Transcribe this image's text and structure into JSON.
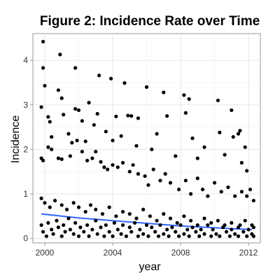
{
  "chart_data": {
    "type": "scatter",
    "title": "Figure 2: Incidence Rate over Time",
    "xlabel": "year",
    "ylabel": "Incidence",
    "xlim": [
      1999.3,
      2012.7
    ],
    "ylim": [
      -0.1,
      4.6
    ],
    "x_ticks": [
      2000,
      2004,
      2008,
      2012
    ],
    "y_ticks": [
      0,
      1,
      2,
      3,
      4
    ],
    "grid": true,
    "point_color": "#000000",
    "trend_color": "#3366ff",
    "trend_line": {
      "x": [
        1999.8,
        2001,
        2002,
        2003,
        2004,
        2005,
        2006,
        2007,
        2008,
        2009,
        2010,
        2011,
        2012.2
      ],
      "y": [
        0.55,
        0.5,
        0.46,
        0.43,
        0.4,
        0.37,
        0.34,
        0.31,
        0.28,
        0.26,
        0.24,
        0.22,
        0.2
      ]
    },
    "points": [
      [
        1999.9,
        4.42
      ],
      [
        1999.9,
        3.83
      ],
      [
        2000.0,
        3.43
      ],
      [
        1999.8,
        2.95
      ],
      [
        2000.2,
        2.73
      ],
      [
        2000.3,
        2.62
      ],
      [
        2000.4,
        2.28
      ],
      [
        2000.8,
        3.33
      ],
      [
        2000.9,
        4.13
      ],
      [
        2001.0,
        3.15
      ],
      [
        2001.1,
        2.78
      ],
      [
        2001.4,
        2.35
      ],
      [
        2001.6,
        2.15
      ],
      [
        2001.8,
        2.91
      ],
      [
        2001.8,
        3.83
      ],
      [
        2002.0,
        2.88
      ],
      [
        2002.2,
        2.64
      ],
      [
        2002.4,
        2.18
      ],
      [
        2002.6,
        3.05
      ],
      [
        2002.9,
        2.55
      ],
      [
        2003.1,
        2.8
      ],
      [
        2003.2,
        3.66
      ],
      [
        2003.6,
        2.4
      ],
      [
        2003.9,
        3.59
      ],
      [
        2004.0,
        2.2
      ],
      [
        2004.2,
        2.74
      ],
      [
        2004.5,
        2.3
      ],
      [
        2004.7,
        3.49
      ],
      [
        2004.9,
        2.76
      ],
      [
        2005.1,
        2.75
      ],
      [
        2005.4,
        2.08
      ],
      [
        2005.5,
        2.7
      ],
      [
        2006.0,
        3.4
      ],
      [
        2006.3,
        2.0
      ],
      [
        2006.6,
        2.35
      ],
      [
        2007.0,
        3.28
      ],
      [
        2007.2,
        2.75
      ],
      [
        2007.7,
        1.85
      ],
      [
        2008.2,
        3.22
      ],
      [
        2008.3,
        2.82
      ],
      [
        2008.5,
        3.13
      ],
      [
        2008.7,
        2.25
      ],
      [
        2009.0,
        1.8
      ],
      [
        2009.4,
        2.05
      ],
      [
        2010.2,
        3.1
      ],
      [
        2010.3,
        2.38
      ],
      [
        2010.6,
        1.88
      ],
      [
        2011.0,
        2.88
      ],
      [
        2011.1,
        2.28
      ],
      [
        2011.4,
        2.35
      ],
      [
        2011.5,
        2.42
      ],
      [
        2011.9,
        1.52
      ],
      [
        2011.6,
        1.7
      ],
      [
        2011.8,
        2.05
      ],
      [
        1999.8,
        1.8
      ],
      [
        1999.9,
        1.75
      ],
      [
        2000.2,
        2.05
      ],
      [
        2000.4,
        2.0
      ],
      [
        2000.8,
        1.8
      ],
      [
        2001.0,
        1.78
      ],
      [
        2001.5,
        1.85
      ],
      [
        2001.9,
        2.2
      ],
      [
        2002.2,
        1.95
      ],
      [
        2002.5,
        1.75
      ],
      [
        2002.8,
        1.8
      ],
      [
        2003.0,
        1.95
      ],
      [
        2003.3,
        1.72
      ],
      [
        2003.5,
        1.6
      ],
      [
        2003.7,
        1.55
      ],
      [
        2004.0,
        1.65
      ],
      [
        2004.3,
        1.6
      ],
      [
        2004.6,
        1.7
      ],
      [
        2005.0,
        1.5
      ],
      [
        2005.2,
        1.65
      ],
      [
        2005.5,
        1.45
      ],
      [
        2005.9,
        1.4
      ],
      [
        2006.1,
        1.2
      ],
      [
        2006.4,
        1.55
      ],
      [
        2006.8,
        1.3
      ],
      [
        2007.1,
        1.45
      ],
      [
        2007.4,
        1.25
      ],
      [
        2007.9,
        1.1
      ],
      [
        2008.3,
        1.3
      ],
      [
        2008.6,
        1.0
      ],
      [
        2009.0,
        1.35
      ],
      [
        2009.3,
        1.1
      ],
      [
        2009.6,
        0.95
      ],
      [
        2010.0,
        1.25
      ],
      [
        2010.4,
        1.05
      ],
      [
        2010.8,
        1.15
      ],
      [
        2011.2,
        0.95
      ],
      [
        2011.6,
        1.05
      ],
      [
        2011.9,
        0.95
      ],
      [
        2012.1,
        1.1
      ],
      [
        2012.3,
        0.85
      ],
      [
        1999.8,
        0.9
      ],
      [
        2000.0,
        0.8
      ],
      [
        2000.3,
        0.7
      ],
      [
        2000.6,
        0.85
      ],
      [
        2001.0,
        0.75
      ],
      [
        2001.3,
        0.65
      ],
      [
        2001.7,
        0.8
      ],
      [
        2002.0,
        0.7
      ],
      [
        2002.4,
        0.6
      ],
      [
        2002.7,
        0.75
      ],
      [
        2003.0,
        0.65
      ],
      [
        2003.4,
        0.55
      ],
      [
        2003.8,
        0.7
      ],
      [
        2004.2,
        0.5
      ],
      [
        2004.6,
        0.6
      ],
      [
        2005.0,
        0.55
      ],
      [
        2005.4,
        0.45
      ],
      [
        2005.8,
        0.65
      ],
      [
        2006.2,
        0.5
      ],
      [
        2006.6,
        0.4
      ],
      [
        2007.0,
        0.55
      ],
      [
        2007.4,
        0.45
      ],
      [
        2007.8,
        0.35
      ],
      [
        2008.2,
        0.5
      ],
      [
        2008.6,
        0.4
      ],
      [
        2009.0,
        0.3
      ],
      [
        2009.4,
        0.45
      ],
      [
        2009.8,
        0.35
      ],
      [
        2010.2,
        0.4
      ],
      [
        2010.6,
        0.3
      ],
      [
        2011.0,
        0.35
      ],
      [
        2011.4,
        0.25
      ],
      [
        2011.8,
        0.4
      ],
      [
        2012.2,
        0.3
      ],
      [
        1999.8,
        0.3
      ],
      [
        1999.9,
        0.15
      ],
      [
        2000.1,
        0.05
      ],
      [
        2000.2,
        0.35
      ],
      [
        2000.4,
        0.2
      ],
      [
        2000.5,
        0.1
      ],
      [
        2000.7,
        0.4
      ],
      [
        2000.8,
        0.25
      ],
      [
        2001.0,
        0.05
      ],
      [
        2001.1,
        0.3
      ],
      [
        2001.2,
        0.15
      ],
      [
        2001.4,
        0.45
      ],
      [
        2001.5,
        0.2
      ],
      [
        2001.7,
        0.1
      ],
      [
        2001.8,
        0.35
      ],
      [
        2002.0,
        0.05
      ],
      [
        2002.1,
        0.25
      ],
      [
        2002.3,
        0.15
      ],
      [
        2002.5,
        0.3
      ],
      [
        2002.6,
        0.05
      ],
      [
        2002.8,
        0.2
      ],
      [
        2003.0,
        0.4
      ],
      [
        2003.1,
        0.1
      ],
      [
        2003.3,
        0.25
      ],
      [
        2003.5,
        0.05
      ],
      [
        2003.6,
        0.3
      ],
      [
        2003.8,
        0.15
      ],
      [
        2004.0,
        0.05
      ],
      [
        2004.1,
        0.35
      ],
      [
        2004.3,
        0.2
      ],
      [
        2004.5,
        0.1
      ],
      [
        2004.6,
        0.3
      ],
      [
        2004.8,
        0.05
      ],
      [
        2005.0,
        0.25
      ],
      [
        2005.1,
        0.15
      ],
      [
        2005.3,
        0.35
      ],
      [
        2005.5,
        0.05
      ],
      [
        2005.6,
        0.2
      ],
      [
        2005.8,
        0.1
      ],
      [
        2006.0,
        0.3
      ],
      [
        2006.1,
        0.05
      ],
      [
        2006.3,
        0.25
      ],
      [
        2006.5,
        0.15
      ],
      [
        2006.7,
        0.05
      ],
      [
        2006.8,
        0.3
      ],
      [
        2007.0,
        0.1
      ],
      [
        2007.2,
        0.2
      ],
      [
        2007.3,
        0.05
      ],
      [
        2007.5,
        0.25
      ],
      [
        2007.7,
        0.15
      ],
      [
        2007.9,
        0.05
      ],
      [
        2008.0,
        0.3
      ],
      [
        2008.2,
        0.1
      ],
      [
        2008.4,
        0.2
      ],
      [
        2008.5,
        0.05
      ],
      [
        2008.7,
        0.25
      ],
      [
        2008.9,
        0.15
      ],
      [
        2009.1,
        0.05
      ],
      [
        2009.2,
        0.2
      ],
      [
        2009.4,
        0.1
      ],
      [
        2009.6,
        0.3
      ],
      [
        2009.8,
        0.05
      ],
      [
        2009.9,
        0.2
      ],
      [
        2010.1,
        0.1
      ],
      [
        2010.3,
        0.05
      ],
      [
        2010.5,
        0.25
      ],
      [
        2010.7,
        0.15
      ],
      [
        2010.9,
        0.05
      ],
      [
        2011.0,
        0.2
      ],
      [
        2011.2,
        0.1
      ],
      [
        2011.4,
        0.05
      ],
      [
        2011.5,
        0.3
      ],
      [
        2011.7,
        0.15
      ],
      [
        2011.9,
        0.05
      ],
      [
        2012.0,
        0.2
      ],
      [
        2012.2,
        0.1
      ],
      [
        2012.3,
        0.05
      ],
      [
        2012.3,
        0.25
      ]
    ]
  }
}
